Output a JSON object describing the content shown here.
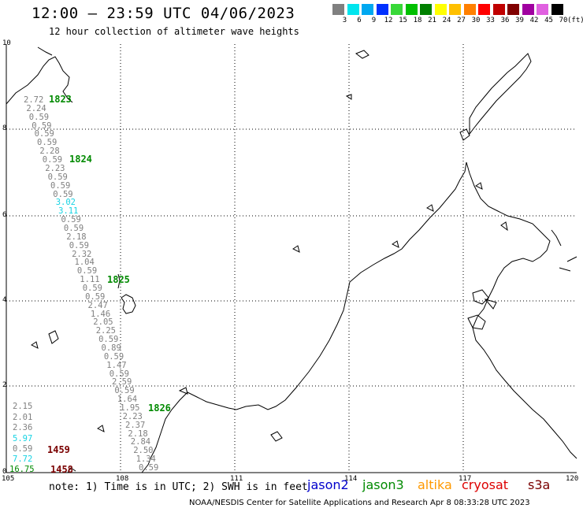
{
  "header": {
    "title": "12:00 – 23:59 UTC 04/06/2023",
    "subtitle": "12 hour collection of altimeter wave heights"
  },
  "legend": {
    "labels": [
      "3",
      "6",
      "9",
      "12",
      "15",
      "18",
      "21",
      "24",
      "27",
      "30",
      "33",
      "36",
      "39",
      "42",
      "45",
      "70"
    ],
    "unit": "(ft)",
    "colors": [
      "#808080",
      "#00e5ee",
      "#00a8f0",
      "#0030ff",
      "#38d838",
      "#00c000",
      "#008000",
      "#ffff00",
      "#ffc000",
      "#ff8000",
      "#ff0000",
      "#c00000",
      "#800000",
      "#a000a0",
      "#e060e0",
      "#000000"
    ]
  },
  "axes": {
    "latitude_labels": [
      "10",
      "8",
      "6",
      "4",
      "2",
      "0"
    ],
    "longitude_labels": [
      "105",
      "108",
      "111",
      "114",
      "117",
      "120"
    ]
  },
  "observations": [
    {
      "value": "2.72",
      "color": "grey"
    },
    {
      "value": "2.24",
      "color": "grey"
    },
    {
      "value": "0.59",
      "color": "grey"
    },
    {
      "value": "0.59",
      "color": "grey"
    },
    {
      "value": "0.59",
      "color": "grey"
    },
    {
      "value": "0.59",
      "color": "grey"
    },
    {
      "value": "2.28",
      "color": "grey"
    },
    {
      "value": "0.59",
      "color": "grey"
    },
    {
      "value": "2.23",
      "color": "grey"
    },
    {
      "value": "0.59",
      "color": "grey"
    },
    {
      "value": "0.59",
      "color": "grey"
    },
    {
      "value": "0.59",
      "color": "grey"
    },
    {
      "value": "3.02",
      "color": "cyan"
    },
    {
      "value": "3.11",
      "color": "cyan"
    },
    {
      "value": "0.59",
      "color": "grey"
    },
    {
      "value": "0.59",
      "color": "grey"
    },
    {
      "value": "2.18",
      "color": "grey"
    },
    {
      "value": "0.59",
      "color": "grey"
    },
    {
      "value": "2.32",
      "color": "grey"
    },
    {
      "value": "1.04",
      "color": "grey"
    },
    {
      "value": "0.59",
      "color": "grey"
    },
    {
      "value": "1.11",
      "color": "grey"
    },
    {
      "value": "0.59",
      "color": "grey"
    },
    {
      "value": "0.59",
      "color": "grey"
    },
    {
      "value": "2.47",
      "color": "grey"
    },
    {
      "value": "1.46",
      "color": "grey"
    },
    {
      "value": "2.05",
      "color": "grey"
    },
    {
      "value": "2.25",
      "color": "grey"
    },
    {
      "value": "0.59",
      "color": "grey"
    },
    {
      "value": "0.89",
      "color": "grey"
    },
    {
      "value": "0.59",
      "color": "grey"
    },
    {
      "value": "1.47",
      "color": "grey"
    },
    {
      "value": "0.59",
      "color": "grey"
    },
    {
      "value": "2.59",
      "color": "grey"
    },
    {
      "value": "0.59",
      "color": "grey"
    },
    {
      "value": "1.64",
      "color": "grey"
    },
    {
      "value": "1.95",
      "color": "grey"
    },
    {
      "value": "2.23",
      "color": "grey"
    },
    {
      "value": "2.37",
      "color": "grey"
    },
    {
      "value": "2.18",
      "color": "grey"
    },
    {
      "value": "2.84",
      "color": "grey"
    },
    {
      "value": "2.50",
      "color": "grey"
    },
    {
      "value": "1.34",
      "color": "grey"
    },
    {
      "value": "0.59",
      "color": "grey"
    },
    {
      "value": "2.15",
      "color": "grey"
    },
    {
      "value": "2.01",
      "color": "grey"
    },
    {
      "value": "2.36",
      "color": "grey"
    },
    {
      "value": "5.97",
      "color": "cyan"
    },
    {
      "value": "0.59",
      "color": "grey"
    },
    {
      "value": "7.72",
      "color": "cyan"
    },
    {
      "value": "16.75",
      "color": "green"
    }
  ],
  "time_labels": [
    {
      "text": "1823",
      "color": "green"
    },
    {
      "text": "1824",
      "color": "green"
    },
    {
      "text": "1825",
      "color": "green"
    },
    {
      "text": "1826",
      "color": "green"
    },
    {
      "text": "1459",
      "color": "maroon"
    },
    {
      "text": "1458",
      "color": "maroon"
    }
  ],
  "footer": {
    "note": "note: 1) Time is in UTC; 2) SWH is in feet",
    "satellites": [
      {
        "name": "jason2",
        "color": "#0000cc"
      },
      {
        "name": "jason3",
        "color": "#008a00"
      },
      {
        "name": "altika",
        "color": "#ff9900"
      },
      {
        "name": "cryosat",
        "color": "#dd0000"
      },
      {
        "name": "s3a",
        "color": "#7a0000"
      }
    ],
    "credit": "NOAA/NESDIS Center for Satellite Applications and Research   Apr  8 08:33:28 UTC 2023"
  }
}
